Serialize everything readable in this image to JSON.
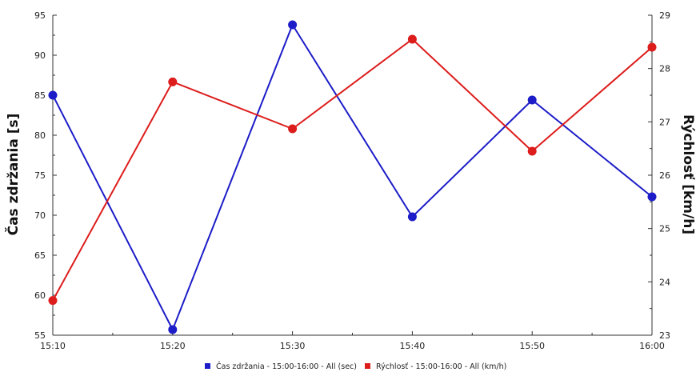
{
  "chart_data": {
    "type": "line",
    "categories": [
      "15:10",
      "15:20",
      "15:30",
      "15:40",
      "15:50",
      "16:00"
    ],
    "series": [
      {
        "name": "Čas zdržania  - 15:00-16:00 - All (sec)",
        "axis": "left",
        "color": "#1c1cc8",
        "values": [
          85.0,
          55.7,
          93.8,
          69.8,
          84.4,
          72.3
        ]
      },
      {
        "name": "Rýchlosť  - 15:00-16:00 - All (km/h)",
        "axis": "right",
        "color": "#dd1c1c",
        "values": [
          23.65,
          27.75,
          26.87,
          28.55,
          26.45,
          28.4
        ]
      }
    ],
    "ylabel": "Čas zdržania [s]",
    "ylabel_right": "Rýchlosť [km/h]",
    "ylim": [
      55,
      95
    ],
    "ylim_right": [
      23,
      29
    ],
    "yticks": [
      "55",
      "60",
      "65",
      "70",
      "75",
      "80",
      "85",
      "90",
      "95"
    ],
    "yticks_right": [
      "23",
      "24",
      "25",
      "26",
      "27",
      "28",
      "29"
    ],
    "grid": false,
    "legend_position": "bottom-center"
  }
}
